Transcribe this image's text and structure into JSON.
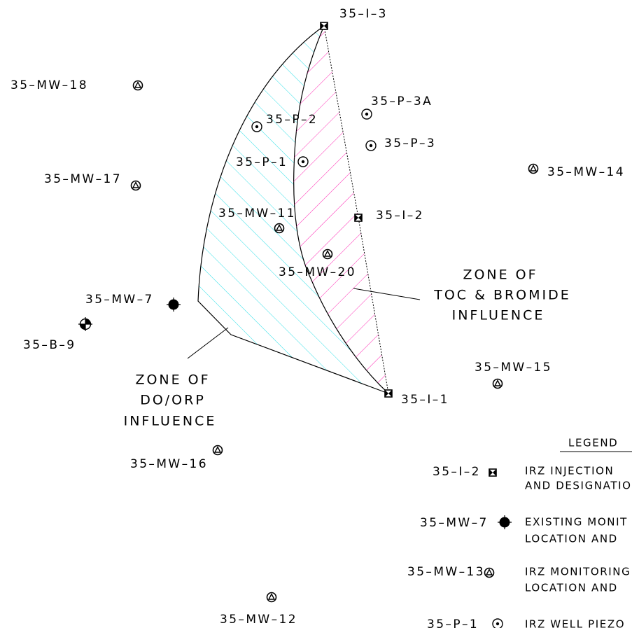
{
  "wells": [
    {
      "label": "35–I–3"
    },
    {
      "label": "35–MW–18"
    },
    {
      "label": "35–P–3A"
    },
    {
      "label": "35–P–2"
    },
    {
      "label": "35–P–3"
    },
    {
      "label": "35–P–1"
    },
    {
      "label": "35–MW–14"
    },
    {
      "label": "35–MW–17"
    },
    {
      "label": "35–MW–11"
    },
    {
      "label": "35–I–2"
    },
    {
      "label": "35–MW–20"
    },
    {
      "label": "35–MW–7"
    },
    {
      "label": "35–B–9"
    },
    {
      "label": "35–MW–15"
    },
    {
      "label": "35–I–1"
    },
    {
      "label": "35–MW–16"
    },
    {
      "label": "35–MW–12"
    }
  ],
  "zones": [
    {
      "lines": [
        "ZONE OF",
        "TOC & BROMIDE",
        "INFLUENCE"
      ]
    },
    {
      "lines": [
        "ZONE OF",
        "DO/ORP",
        "INFLUENCE"
      ]
    }
  ],
  "legend": {
    "title": "LEGEND",
    "items": [
      {
        "label": "35–I–2",
        "lines": [
          "IRZ INJECTION",
          "AND DESIGNATIO"
        ]
      },
      {
        "label": "35–MW–7",
        "lines": [
          "EXISTING MONIT",
          "LOCATION AND"
        ]
      },
      {
        "label": "35–MW–13",
        "lines": [
          "IRZ MONITORING",
          "LOCATION AND"
        ]
      },
      {
        "label": "35–P–1",
        "lines": [
          "IRZ WELL PIEZO"
        ]
      }
    ]
  }
}
